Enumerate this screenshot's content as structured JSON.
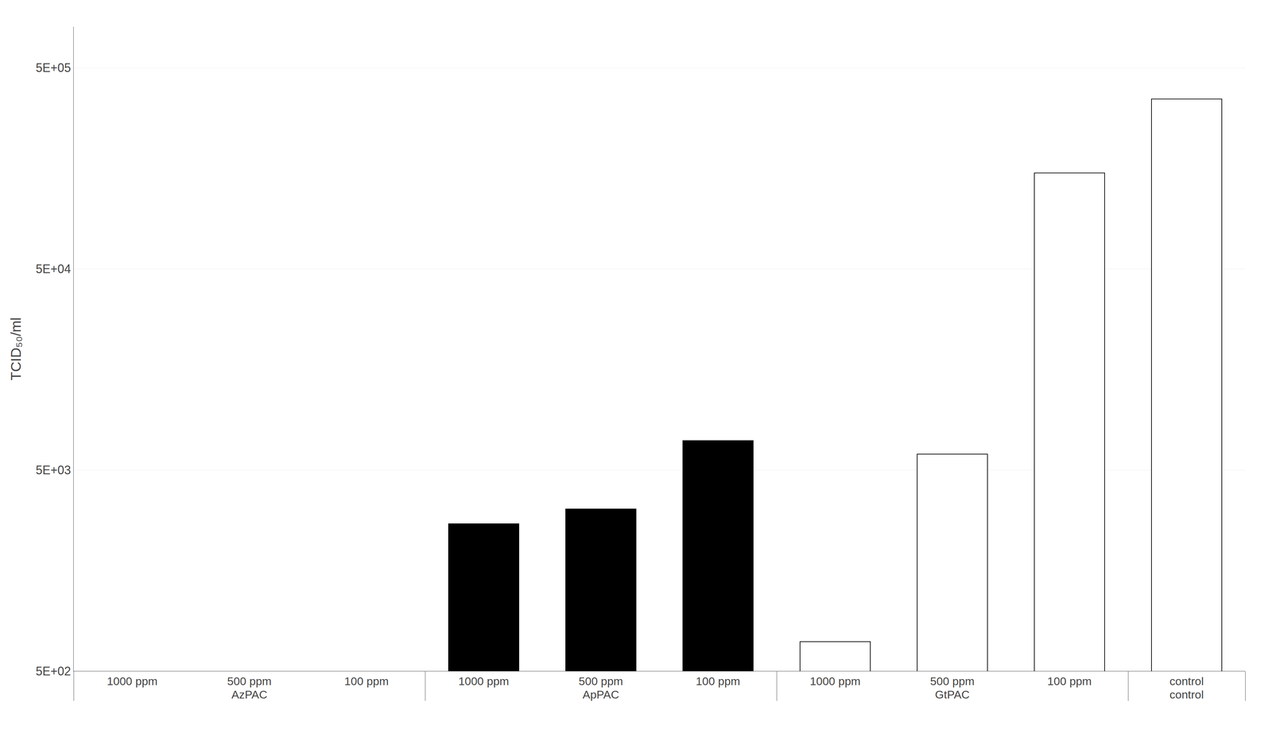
{
  "chart_data": {
    "type": "bar",
    "categories": [
      "1000 ppm",
      "500 ppm",
      "100 ppm",
      "1000 ppm",
      "500 ppm",
      "100 ppm",
      "1000 ppm",
      "500 ppm",
      "100 ppm",
      "control"
    ],
    "groups": [
      "AzPAC",
      "AzPAC",
      "AzPAC",
      "ApPAC",
      "ApPAC",
      "ApPAC",
      "GtPAC",
      "GtPAC",
      "GtPAC",
      "control"
    ],
    "values": [
      null,
      null,
      null,
      2700,
      3200,
      7000,
      700,
      6000,
      150000,
      350000
    ],
    "colors": [
      "black",
      "black",
      "black",
      "black",
      "black",
      "black",
      "white",
      "white",
      "white",
      "white"
    ],
    "ylabel": "TCID₅₀/ml",
    "ylim": [
      500,
      800000
    ],
    "yticks": [
      {
        "value": 500,
        "label": "5E+02"
      },
      {
        "value": 5000,
        "label": "5E+03"
      },
      {
        "value": 50000,
        "label": "5E+04"
      },
      {
        "value": 500000,
        "label": "5E+05"
      }
    ],
    "log": "y",
    "grid": true
  }
}
